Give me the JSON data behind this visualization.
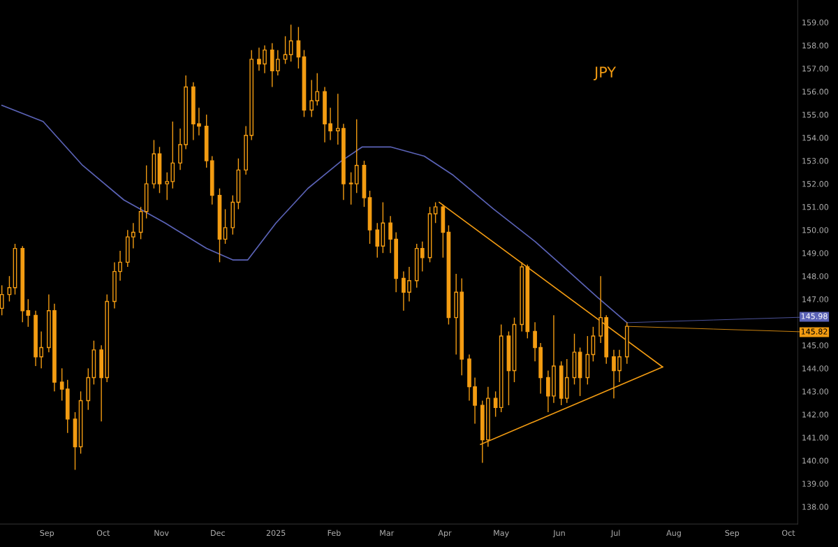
{
  "chart_data": {
    "type": "candlestick",
    "color": "#f39c12",
    "x": [
      "2024-08-08",
      "2024-08-12",
      "2024-08-15",
      "2024-08-19",
      "2024-08-22",
      "2024-08-26",
      "2024-08-29",
      "2024-09-02",
      "2024-09-05",
      "2024-09-09",
      "2024-09-12",
      "2024-09-16",
      "2024-09-19",
      "2024-09-23",
      "2024-09-26",
      "2024-09-30",
      "2024-10-03",
      "2024-10-07",
      "2024-10-10",
      "2024-10-14",
      "2024-10-17",
      "2024-10-21",
      "2024-10-24",
      "2024-10-28",
      "2024-10-31",
      "2024-11-04",
      "2024-11-07",
      "2024-11-11",
      "2024-11-14",
      "2024-11-18",
      "2024-11-21",
      "2024-11-25",
      "2024-11-28",
      "2024-12-02",
      "2024-12-05",
      "2024-12-09",
      "2024-12-12",
      "2024-12-16",
      "2024-12-19",
      "2024-12-23",
      "2024-12-26",
      "2024-12-30",
      "2025-01-02",
      "2025-01-06",
      "2025-01-09",
      "2025-01-13",
      "2025-01-16",
      "2025-01-20",
      "2025-01-23",
      "2025-01-27",
      "2025-01-30",
      "2025-02-03",
      "2025-02-06",
      "2025-02-10",
      "2025-02-13",
      "2025-02-17",
      "2025-02-20",
      "2025-02-24",
      "2025-02-27",
      "2025-03-03",
      "2025-03-06",
      "2025-03-10",
      "2025-03-13",
      "2025-03-17",
      "2025-03-20",
      "2025-03-24",
      "2025-03-27",
      "2025-03-31",
      "2025-04-03",
      "2025-04-07",
      "2025-04-10",
      "2025-04-14",
      "2025-04-17",
      "2025-04-21",
      "2025-04-24",
      "2025-04-28",
      "2025-05-01",
      "2025-05-05",
      "2025-05-08",
      "2025-05-12",
      "2025-05-15",
      "2025-05-19",
      "2025-05-22",
      "2025-05-26",
      "2025-05-29",
      "2025-06-02",
      "2025-06-05",
      "2025-06-09",
      "2025-06-12",
      "2025-06-16",
      "2025-06-19",
      "2025-06-23",
      "2025-06-26",
      "2025-06-30",
      "2025-07-03",
      "2025-07-07"
    ],
    "ohlc": [
      [
        146.6,
        147.6,
        146.3,
        147.2
      ],
      [
        147.2,
        148.0,
        146.9,
        147.5
      ],
      [
        147.5,
        149.4,
        147.2,
        149.2
      ],
      [
        149.2,
        149.3,
        146.0,
        146.5
      ],
      [
        146.5,
        147.0,
        145.8,
        146.3
      ],
      [
        146.3,
        146.5,
        144.1,
        144.5
      ],
      [
        144.5,
        145.6,
        144.0,
        144.9
      ],
      [
        144.9,
        147.2,
        144.7,
        146.5
      ],
      [
        146.5,
        146.8,
        143.0,
        143.4
      ],
      [
        143.4,
        144.0,
        142.6,
        143.1
      ],
      [
        143.1,
        143.5,
        141.2,
        141.8
      ],
      [
        141.8,
        142.1,
        139.6,
        140.6
      ],
      [
        140.6,
        143.0,
        140.3,
        142.6
      ],
      [
        142.6,
        144.0,
        142.2,
        143.6
      ],
      [
        143.6,
        145.2,
        143.3,
        144.8
      ],
      [
        144.8,
        145.0,
        141.7,
        143.6
      ],
      [
        143.6,
        147.2,
        143.4,
        146.9
      ],
      [
        146.9,
        148.6,
        146.6,
        148.2
      ],
      [
        148.2,
        149.1,
        147.8,
        148.6
      ],
      [
        148.6,
        150.0,
        148.4,
        149.7
      ],
      [
        149.7,
        150.3,
        149.2,
        149.9
      ],
      [
        149.9,
        151.0,
        149.6,
        150.8
      ],
      [
        150.8,
        152.8,
        150.5,
        152.0
      ],
      [
        152.0,
        153.9,
        151.8,
        153.3
      ],
      [
        153.3,
        153.6,
        151.6,
        152.0
      ],
      [
        152.0,
        152.5,
        151.3,
        152.1
      ],
      [
        152.1,
        154.7,
        151.8,
        152.9
      ],
      [
        152.9,
        154.4,
        152.6,
        153.7
      ],
      [
        153.7,
        156.7,
        153.5,
        156.2
      ],
      [
        156.2,
        156.4,
        153.9,
        154.6
      ],
      [
        154.6,
        155.3,
        154.1,
        154.5
      ],
      [
        154.5,
        155.0,
        152.7,
        153.0
      ],
      [
        153.0,
        153.2,
        151.1,
        151.5
      ],
      [
        151.5,
        151.8,
        148.6,
        149.6
      ],
      [
        149.6,
        150.9,
        149.4,
        150.1
      ],
      [
        150.1,
        151.5,
        149.8,
        151.2
      ],
      [
        151.2,
        153.1,
        150.9,
        152.6
      ],
      [
        152.6,
        154.5,
        152.4,
        154.1
      ],
      [
        154.1,
        157.8,
        153.9,
        157.4
      ],
      [
        157.4,
        157.9,
        156.9,
        157.2
      ],
      [
        157.2,
        158.0,
        156.8,
        157.8
      ],
      [
        157.8,
        158.1,
        156.2,
        156.9
      ],
      [
        156.9,
        157.8,
        156.7,
        157.4
      ],
      [
        157.4,
        158.4,
        157.2,
        157.6
      ],
      [
        157.6,
        158.9,
        157.3,
        158.2
      ],
      [
        158.2,
        158.8,
        157.0,
        157.5
      ],
      [
        157.5,
        157.8,
        154.9,
        155.2
      ],
      [
        155.2,
        156.5,
        154.9,
        155.6
      ],
      [
        155.6,
        156.8,
        155.4,
        156.0
      ],
      [
        156.0,
        156.2,
        153.8,
        154.6
      ],
      [
        154.6,
        155.3,
        153.9,
        154.3
      ],
      [
        154.3,
        155.9,
        153.7,
        154.4
      ],
      [
        154.4,
        154.6,
        151.3,
        152.0
      ],
      [
        152.0,
        152.5,
        151.1,
        152.0
      ],
      [
        152.0,
        154.8,
        151.6,
        152.8
      ],
      [
        152.8,
        153.0,
        151.0,
        151.4
      ],
      [
        151.4,
        151.7,
        149.4,
        150.0
      ],
      [
        150.0,
        150.3,
        148.8,
        149.3
      ],
      [
        149.3,
        151.2,
        149.0,
        150.3
      ],
      [
        150.3,
        150.6,
        149.0,
        149.6
      ],
      [
        149.6,
        149.9,
        147.3,
        147.9
      ],
      [
        147.9,
        148.2,
        146.5,
        147.3
      ],
      [
        147.3,
        148.4,
        146.9,
        147.8
      ],
      [
        147.8,
        149.4,
        147.5,
        149.2
      ],
      [
        149.2,
        149.5,
        148.2,
        148.8
      ],
      [
        148.8,
        151.0,
        148.6,
        150.7
      ],
      [
        150.7,
        151.2,
        150.3,
        151.0
      ],
      [
        151.0,
        151.1,
        148.8,
        149.9
      ],
      [
        149.9,
        150.2,
        145.9,
        146.2
      ],
      [
        146.2,
        148.1,
        144.6,
        147.3
      ],
      [
        147.3,
        147.9,
        143.7,
        144.4
      ],
      [
        144.4,
        144.6,
        142.6,
        143.2
      ],
      [
        143.2,
        143.6,
        141.6,
        142.4
      ],
      [
        142.4,
        142.6,
        139.9,
        140.9
      ],
      [
        140.9,
        143.2,
        140.6,
        142.7
      ],
      [
        142.7,
        143.0,
        141.9,
        142.3
      ],
      [
        142.3,
        145.9,
        142.1,
        145.4
      ],
      [
        145.4,
        145.6,
        142.4,
        143.9
      ],
      [
        143.9,
        146.2,
        143.4,
        145.9
      ],
      [
        145.9,
        148.6,
        145.6,
        148.4
      ],
      [
        148.4,
        148.5,
        145.3,
        145.6
      ],
      [
        145.6,
        146.0,
        144.3,
        144.9
      ],
      [
        144.9,
        145.1,
        142.9,
        143.6
      ],
      [
        143.6,
        143.9,
        142.1,
        142.8
      ],
      [
        142.8,
        146.3,
        142.5,
        144.1
      ],
      [
        144.1,
        144.3,
        142.4,
        142.7
      ],
      [
        142.7,
        144.4,
        142.5,
        143.6
      ],
      [
        143.6,
        145.5,
        143.3,
        144.7
      ],
      [
        144.7,
        144.9,
        142.8,
        143.6
      ],
      [
        143.6,
        145.4,
        143.3,
        144.6
      ],
      [
        144.6,
        145.8,
        144.3,
        145.4
      ],
      [
        145.4,
        148.0,
        145.1,
        146.2
      ],
      [
        146.2,
        146.3,
        144.2,
        144.5
      ],
      [
        144.5,
        144.8,
        142.7,
        143.9
      ],
      [
        143.9,
        144.8,
        143.4,
        144.5
      ],
      [
        144.5,
        146.0,
        144.2,
        145.82
      ]
    ],
    "series": [
      {
        "type": "line",
        "color": "#5b63b7",
        "x": [
          "2024-08-08",
          "2024-08-30",
          "2024-09-20",
          "2024-10-12",
          "2024-11-03",
          "2024-11-25",
          "2024-12-09",
          "2024-12-17",
          "2025-01-01",
          "2025-01-18",
          "2025-02-05",
          "2025-02-16",
          "2025-03-03",
          "2025-03-21",
          "2025-04-05",
          "2025-04-27",
          "2025-05-19",
          "2025-06-06",
          "2025-06-21",
          "2025-07-07"
        ],
        "values": [
          155.4,
          154.7,
          152.8,
          151.3,
          150.3,
          149.2,
          148.7,
          148.7,
          150.3,
          151.8,
          153.0,
          153.6,
          153.6,
          153.2,
          152.4,
          150.9,
          149.5,
          148.2,
          147.1,
          145.98
        ]
      },
      {
        "type": "line",
        "color": "#f39c12",
        "x": [
          "2025-03-29",
          "2025-07-26"
        ],
        "values": [
          151.2,
          144.06
        ]
      },
      {
        "type": "line",
        "color": "#f39c12",
        "x": [
          "2025-04-20",
          "2025-07-26"
        ],
        "values": [
          140.7,
          144.06
        ]
      }
    ],
    "annotations": [
      "JPY",
      {
        "text": "145.98",
        "x": "2025-07-07",
        "y": 145.98
      },
      {
        "text": "145.82",
        "x": "2025-07-07",
        "y": 145.82
      }
    ],
    "xlim": [
      "2024-08-07",
      "2025-10-06"
    ],
    "xticks": [
      {
        "value": "2024-09-01",
        "label": "Sep"
      },
      {
        "value": "2024-10-01",
        "label": "Oct"
      },
      {
        "value": "2024-11-01",
        "label": "Nov"
      },
      {
        "value": "2024-12-01",
        "label": "Dec"
      },
      {
        "value": "2025-01-01",
        "label": "2025"
      },
      {
        "value": "2025-02-01",
        "label": "Feb"
      },
      {
        "value": "2025-03-01",
        "label": "Mar"
      },
      {
        "value": "2025-04-01",
        "label": "Apr"
      },
      {
        "value": "2025-05-01",
        "label": "May"
      },
      {
        "value": "2025-06-01",
        "label": "Jun"
      },
      {
        "value": "2025-07-01",
        "label": "Jul"
      },
      {
        "value": "2025-08-01",
        "label": "Aug"
      },
      {
        "value": "2025-09-01",
        "label": "Sep"
      },
      {
        "value": "2025-10-01",
        "label": "Oct"
      }
    ],
    "ylim": [
      137.25,
      159.97
    ],
    "yticks": [
      {
        "value": 138,
        "label": "138.00"
      },
      {
        "value": 139,
        "label": "139.00"
      },
      {
        "value": 140,
        "label": "140.00"
      },
      {
        "value": 141,
        "label": "141.00"
      },
      {
        "value": 142,
        "label": "142.00"
      },
      {
        "value": 143,
        "label": "143.00"
      },
      {
        "value": 144,
        "label": "144.00"
      },
      {
        "value": 145,
        "label": "145.00"
      },
      {
        "value": 147,
        "label": "147.00"
      },
      {
        "value": 148,
        "label": "148.00"
      },
      {
        "value": 149,
        "label": "149.00"
      },
      {
        "value": 150,
        "label": "150.00"
      },
      {
        "value": 151,
        "label": "151.00"
      },
      {
        "value": 152,
        "label": "152.00"
      },
      {
        "value": 153,
        "label": "153.00"
      },
      {
        "value": 154,
        "label": "154.00"
      },
      {
        "value": 155,
        "label": "155.00"
      },
      {
        "value": 156,
        "label": "156.00"
      },
      {
        "value": 157,
        "label": "157.00"
      },
      {
        "value": 158,
        "label": "158.00"
      },
      {
        "value": 159,
        "label": "159.00"
      }
    ],
    "grid": false,
    "legend": false
  }
}
